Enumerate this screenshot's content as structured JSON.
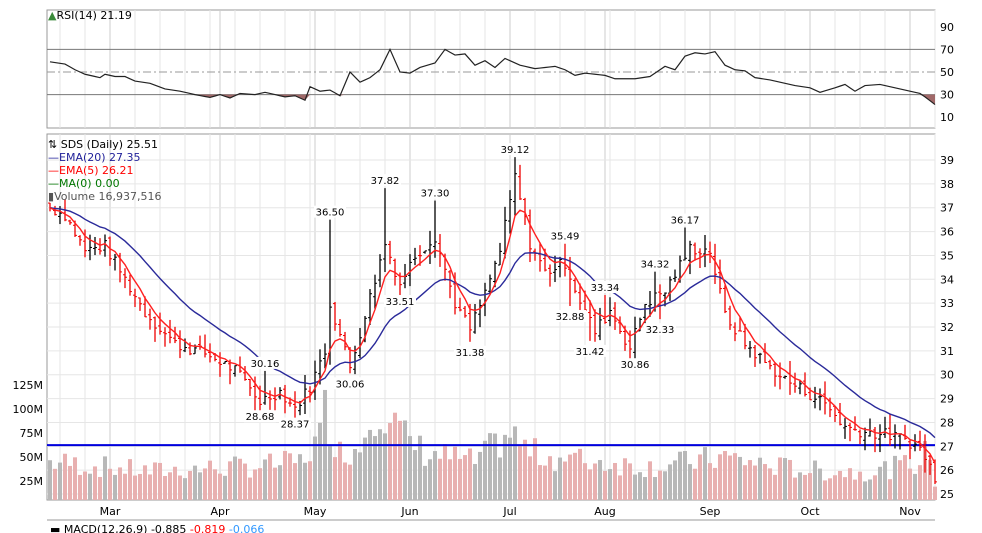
{
  "chart_data": {
    "type": "ohlc",
    "title": "SDS (Daily) 25.51",
    "symbol": "SDS",
    "last": "25.51",
    "legend": [
      {
        "label": "SDS (Daily) 25.51",
        "color": "#000000"
      },
      {
        "label": "EMA(20) 27.35",
        "color": "#1f1f99"
      },
      {
        "label": "EMA(5) 26.21",
        "color": "#ff0000"
      },
      {
        "label": "MA(0) 0.00",
        "color": "#007700"
      },
      {
        "label": "Volume 16,937,516",
        "color": "#555555"
      }
    ],
    "rsi_label": "RSI(14) 21.19",
    "macd_label": "MACD(12,26,9) -0.885",
    "macd_signal": "-0.819",
    "macd_hist": "-0.066",
    "months": [
      {
        "label": "Mar",
        "day": 12
      },
      {
        "label": "Apr",
        "day": 34
      },
      {
        "label": "May",
        "day": 53
      },
      {
        "label": "Jun",
        "day": 72
      },
      {
        "label": "Jul",
        "day": 92
      },
      {
        "label": "Aug",
        "day": 111
      },
      {
        "label": "Sep",
        "day": 132
      },
      {
        "label": "Oct",
        "day": 152
      },
      {
        "label": "Nov",
        "day": 172
      }
    ],
    "price_ticks": [
      25,
      26,
      27,
      28,
      29,
      30,
      31,
      32,
      33,
      34,
      35,
      36,
      37,
      38,
      39
    ],
    "rsi_ticks": [
      10,
      30,
      50,
      70,
      90
    ],
    "volume_ticks": [
      {
        "label": "25M",
        "v": 25
      },
      {
        "label": "50M",
        "v": 50
      },
      {
        "label": "75M",
        "v": 75
      },
      {
        "label": "100M",
        "v": 100
      },
      {
        "label": "125M",
        "v": 125
      }
    ],
    "hline_price": 27.05,
    "close_keypoints": [
      [
        0,
        37
      ],
      [
        3,
        36.7
      ],
      [
        7,
        35.2
      ],
      [
        11,
        35.4
      ],
      [
        15,
        34
      ],
      [
        19,
        32.6
      ],
      [
        25,
        31.3
      ],
      [
        31,
        30.9
      ],
      [
        37,
        30.2
      ],
      [
        42,
        28.9
      ],
      [
        46,
        29.3
      ],
      [
        49,
        28.6
      ],
      [
        52,
        29.5
      ],
      [
        55,
        31
      ],
      [
        56,
        33
      ],
      [
        59,
        31
      ],
      [
        60,
        30.3
      ],
      [
        63,
        32.5
      ],
      [
        67,
        35.5
      ],
      [
        70,
        33.8
      ],
      [
        73,
        35
      ],
      [
        77,
        35.8
      ],
      [
        81,
        33
      ],
      [
        84,
        31.9
      ],
      [
        87,
        33.4
      ],
      [
        90,
        35.2
      ],
      [
        93,
        38.3
      ],
      [
        96,
        35.5
      ],
      [
        99,
        34.3
      ],
      [
        103,
        34.7
      ],
      [
        106,
        33.1
      ],
      [
        109,
        31.8
      ],
      [
        112,
        32.7
      ],
      [
        116,
        31.1
      ],
      [
        119,
        33
      ],
      [
        123,
        33.5
      ],
      [
        128,
        35.3
      ],
      [
        132,
        35.2
      ],
      [
        135,
        32.5
      ],
      [
        139,
        31.3
      ],
      [
        143,
        30.5
      ],
      [
        147,
        29.8
      ],
      [
        151,
        29.3
      ],
      [
        155,
        28.8
      ],
      [
        159,
        27.8
      ],
      [
        163,
        27.6
      ],
      [
        167,
        27.5
      ],
      [
        171,
        27.3
      ],
      [
        174,
        26.9
      ],
      [
        176,
        26.2
      ],
      [
        177,
        25.51
      ]
    ],
    "rsi_keypoints": [
      [
        0,
        59
      ],
      [
        3,
        57
      ],
      [
        5,
        52
      ],
      [
        7,
        48
      ],
      [
        10,
        45
      ],
      [
        11,
        48
      ],
      [
        13,
        46
      ],
      [
        15,
        46
      ],
      [
        17,
        42
      ],
      [
        20,
        40
      ],
      [
        23,
        35
      ],
      [
        26,
        33
      ],
      [
        29,
        30
      ],
      [
        32,
        27.5
      ],
      [
        34,
        30
      ],
      [
        36,
        27
      ],
      [
        38,
        31
      ],
      [
        41,
        30
      ],
      [
        43,
        32
      ],
      [
        45,
        30
      ],
      [
        47,
        28
      ],
      [
        49,
        29
      ],
      [
        51,
        25
      ],
      [
        52,
        37
      ],
      [
        54,
        33
      ],
      [
        56,
        34
      ],
      [
        58,
        29
      ],
      [
        60,
        50
      ],
      [
        62,
        41
      ],
      [
        64,
        45
      ],
      [
        66,
        52
      ],
      [
        68,
        70
      ],
      [
        70,
        50
      ],
      [
        72,
        49
      ],
      [
        74,
        54
      ],
      [
        77,
        58
      ],
      [
        79,
        70
      ],
      [
        81,
        65
      ],
      [
        83,
        66
      ],
      [
        85,
        56
      ],
      [
        87,
        60
      ],
      [
        89,
        54
      ],
      [
        91,
        62
      ],
      [
        93,
        58
      ],
      [
        94,
        56
      ],
      [
        97,
        53
      ],
      [
        101,
        55
      ],
      [
        103,
        52
      ],
      [
        105,
        47
      ],
      [
        107,
        49
      ],
      [
        111,
        47
      ],
      [
        113,
        44
      ],
      [
        117,
        44
      ],
      [
        120,
        46
      ],
      [
        123,
        55
      ],
      [
        125,
        52
      ],
      [
        127,
        64
      ],
      [
        129,
        67
      ],
      [
        131,
        66
      ],
      [
        133,
        68
      ],
      [
        135,
        56
      ],
      [
        137,
        52
      ],
      [
        139,
        51
      ],
      [
        141,
        45
      ],
      [
        144,
        43
      ],
      [
        147,
        40
      ],
      [
        149,
        38
      ],
      [
        152,
        36
      ],
      [
        154,
        32
      ],
      [
        157,
        36
      ],
      [
        159,
        39
      ],
      [
        161,
        33
      ],
      [
        163,
        38
      ],
      [
        166,
        39
      ],
      [
        167,
        38
      ],
      [
        170,
        35
      ],
      [
        172,
        33
      ],
      [
        174,
        31
      ],
      [
        175,
        28
      ],
      [
        177,
        21.19
      ]
    ],
    "volume_keypoints": [
      [
        0,
        45
      ],
      [
        10,
        40
      ],
      [
        20,
        35
      ],
      [
        30,
        38
      ],
      [
        40,
        40
      ],
      [
        50,
        45
      ],
      [
        54,
        70
      ],
      [
        55,
        100
      ],
      [
        58,
        55
      ],
      [
        62,
        60
      ],
      [
        64,
        100
      ],
      [
        66,
        105
      ],
      [
        68,
        90
      ],
      [
        71,
        70
      ],
      [
        75,
        55
      ],
      [
        80,
        50
      ],
      [
        85,
        45
      ],
      [
        92,
        75
      ],
      [
        96,
        55
      ],
      [
        100,
        50
      ],
      [
        110,
        45
      ],
      [
        120,
        40
      ],
      [
        128,
        45
      ],
      [
        135,
        50
      ],
      [
        145,
        40
      ],
      [
        155,
        35
      ],
      [
        165,
        35
      ],
      [
        174,
        45
      ],
      [
        176,
        60
      ],
      [
        177,
        17
      ]
    ],
    "annotations": [
      {
        "label": "30.16",
        "day": 43,
        "price": 30.16,
        "pos": "above"
      },
      {
        "label": "28.68",
        "day": 42,
        "price": 28.68,
        "pos": "below"
      },
      {
        "label": "28.37",
        "day": 49,
        "price": 28.37,
        "pos": "below"
      },
      {
        "label": "36.50",
        "day": 56,
        "price": 36.5,
        "pos": "above"
      },
      {
        "label": "30.06",
        "day": 60,
        "price": 30.06,
        "pos": "below"
      },
      {
        "label": "37.82",
        "day": 67,
        "price": 37.82,
        "pos": "above"
      },
      {
        "label": "33.51",
        "day": 70,
        "price": 33.51,
        "pos": "below"
      },
      {
        "label": "37.30",
        "day": 77,
        "price": 37.3,
        "pos": "above"
      },
      {
        "label": "31.38",
        "day": 84,
        "price": 31.38,
        "pos": "below"
      },
      {
        "label": "39.12",
        "day": 93,
        "price": 39.12,
        "pos": "above"
      },
      {
        "label": "35.49",
        "day": 103,
        "price": 35.49,
        "pos": "above"
      },
      {
        "label": "32.88",
        "day": 104,
        "price": 32.88,
        "pos": "below"
      },
      {
        "label": "33.34",
        "day": 111,
        "price": 33.34,
        "pos": "above"
      },
      {
        "label": "31.42",
        "day": 108,
        "price": 31.42,
        "pos": "below"
      },
      {
        "label": "30.86",
        "day": 117,
        "price": 30.86,
        "pos": "below"
      },
      {
        "label": "34.32",
        "day": 121,
        "price": 34.32,
        "pos": "above"
      },
      {
        "label": "32.33",
        "day": 122,
        "price": 32.33,
        "pos": "below"
      },
      {
        "label": "36.17",
        "day": 127,
        "price": 36.17,
        "pos": "above"
      }
    ],
    "colors": {
      "ema20": "#2a2a9a",
      "ema5": "#ff2020",
      "hline": "#0000dd",
      "vol_up": "#b8b8b8",
      "vol_down": "#e8b0b0",
      "rsi_fill": "#a06868"
    }
  }
}
